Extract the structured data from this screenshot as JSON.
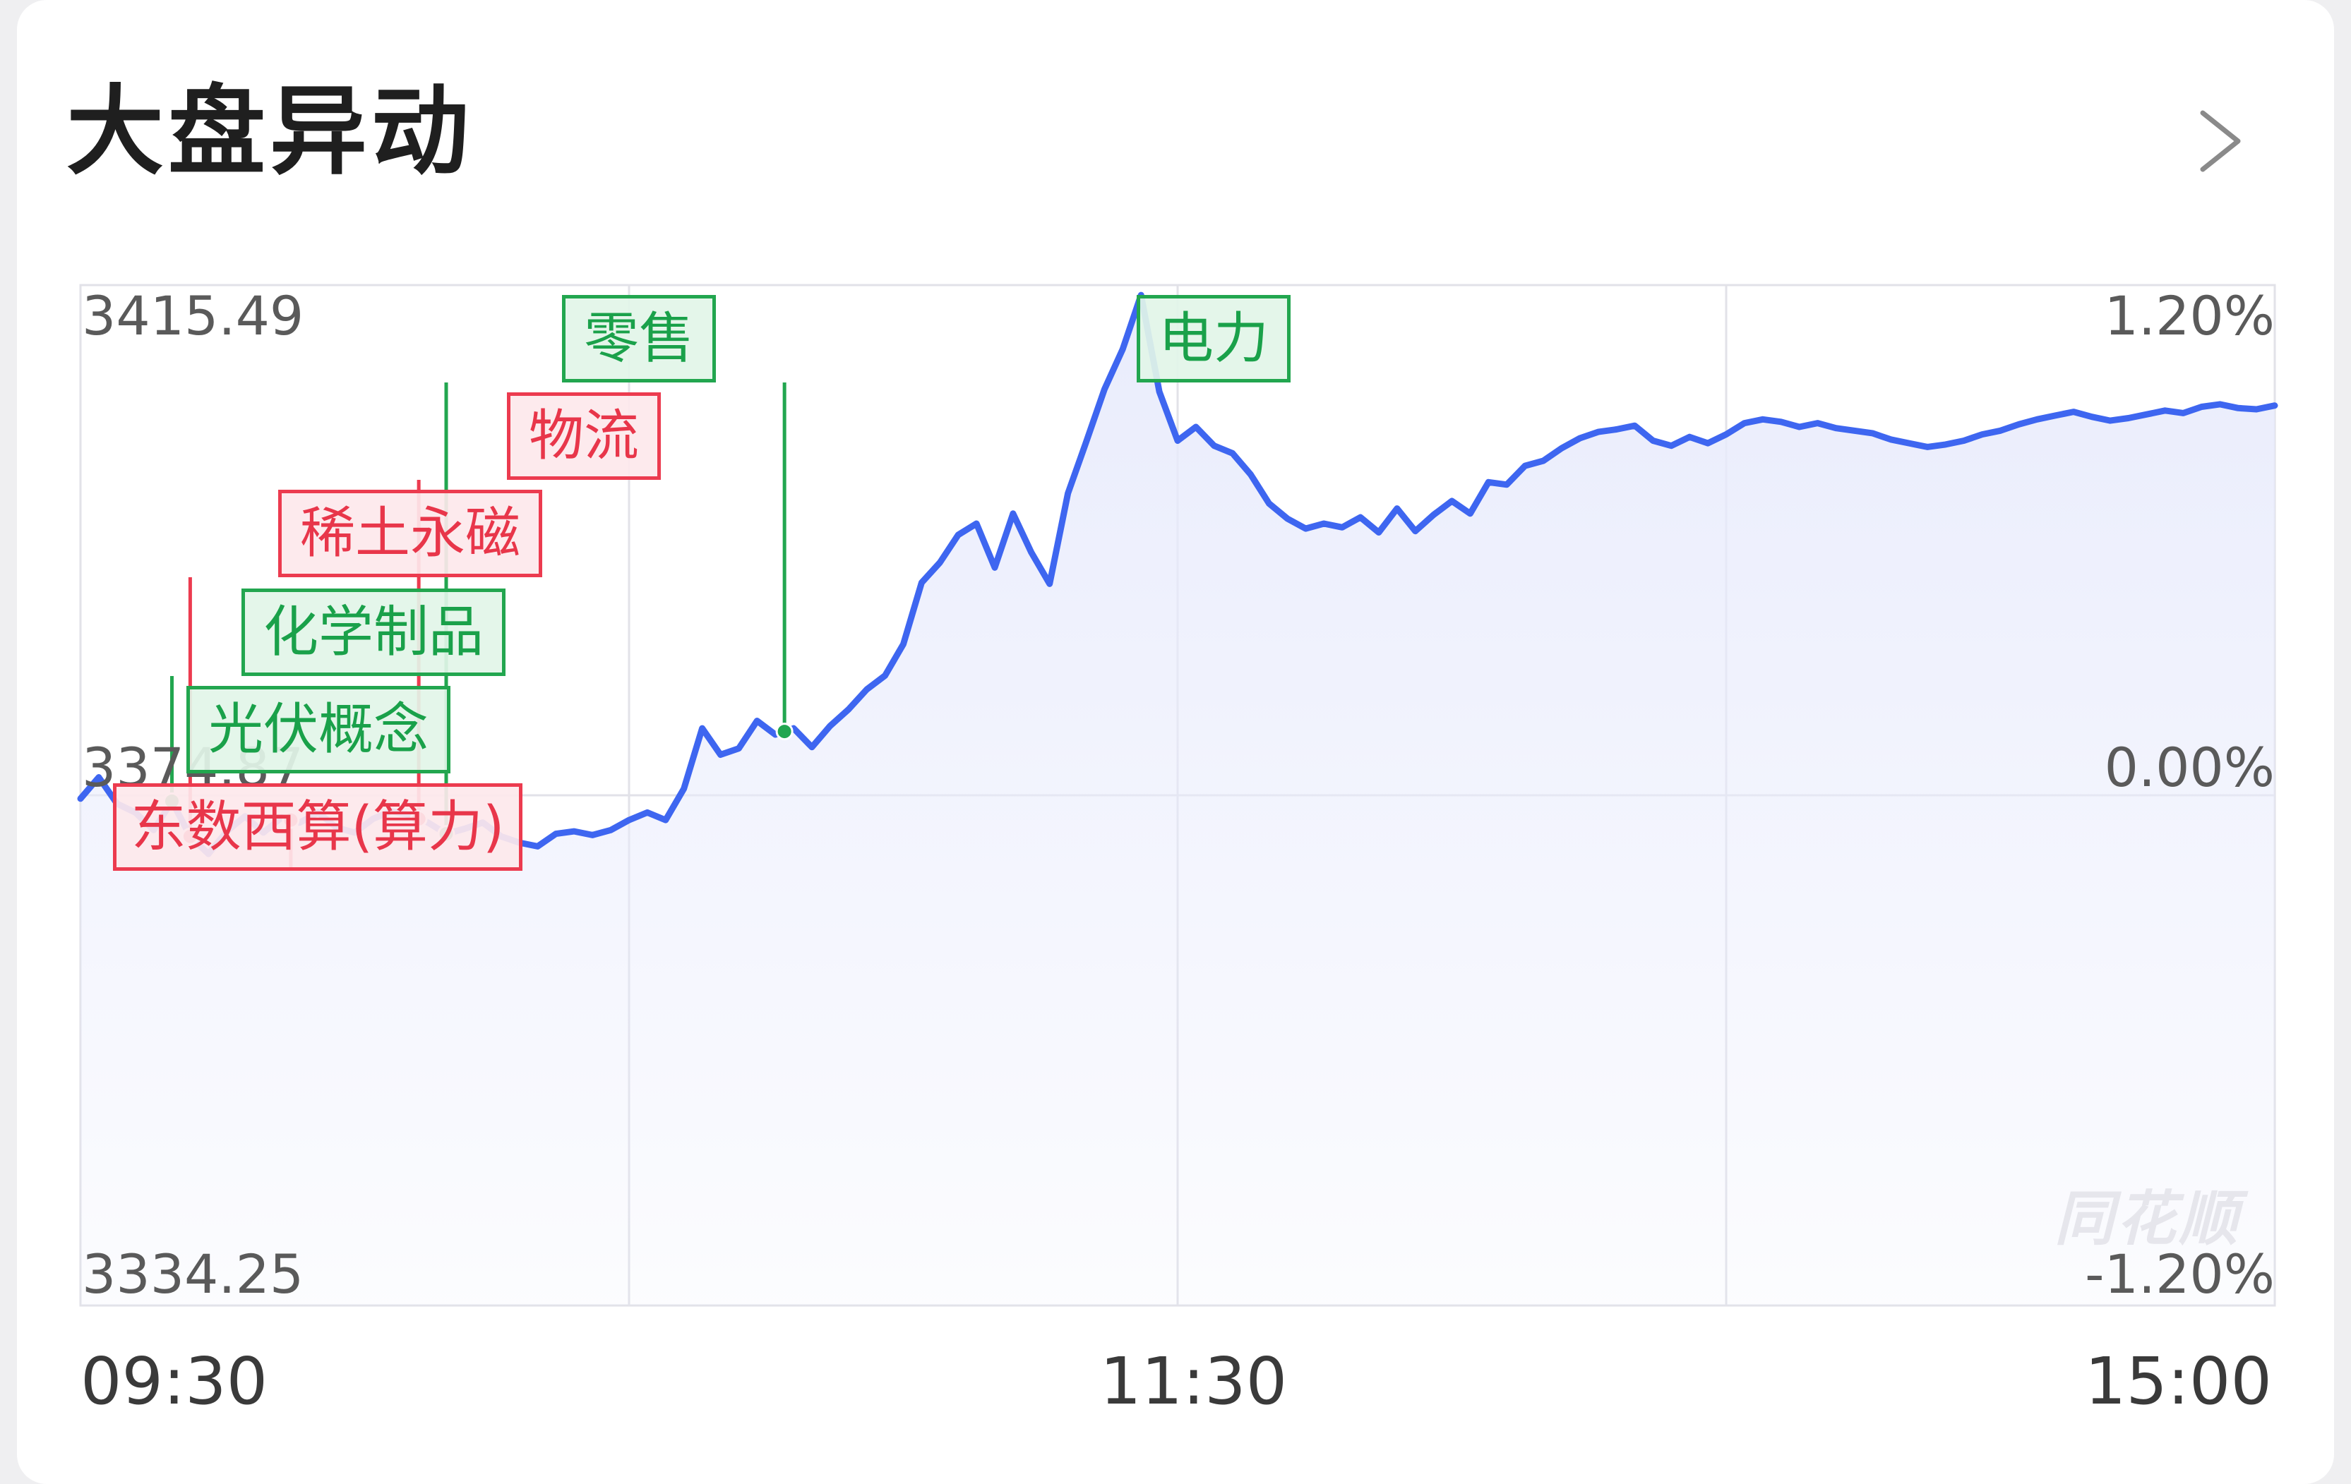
{
  "header": {
    "title": "大盘异动"
  },
  "chart_data": {
    "type": "line",
    "title": "大盘异动",
    "x_ticks": [
      "09:30",
      "11:30",
      "15:00"
    ],
    "y_left_ticks": [
      "3415.49",
      "3374.87",
      "3334.25"
    ],
    "y_right_ticks": [
      "1.20%",
      "0.00%",
      "-1.20%"
    ],
    "ylim": [
      3334.25,
      3415.49
    ],
    "base": 3374.87,
    "x_minutes_range": [
      0,
      240
    ],
    "series": [
      {
        "color": "#3e66f0",
        "x": [
          0,
          2,
          4,
          6,
          8,
          10,
          12,
          14,
          16,
          18,
          20,
          22,
          24,
          26,
          28,
          30,
          32,
          34,
          36,
          38,
          40,
          42,
          44,
          46,
          48,
          50,
          52,
          54,
          56,
          58,
          60,
          62,
          64,
          66,
          68,
          70,
          72,
          74,
          76,
          78,
          80,
          82,
          84,
          86,
          88,
          90,
          92,
          94,
          96,
          98,
          100,
          102,
          104,
          106,
          108,
          110,
          112,
          114,
          116,
          118,
          120,
          122,
          124,
          126,
          128,
          130,
          132,
          134,
          136,
          138,
          140,
          142,
          144,
          146,
          148,
          150,
          152,
          154,
          156,
          158,
          160,
          162,
          164,
          166,
          168,
          170,
          172,
          174,
          176,
          178,
          180,
          182,
          184,
          186,
          188,
          190,
          192,
          194,
          196,
          198,
          200,
          202,
          204,
          206,
          208,
          210,
          212,
          214,
          216,
          218,
          220,
          222,
          224,
          226,
          228,
          230,
          232,
          234,
          236,
          238,
          240
        ],
        "values": [
          3374.6,
          3376.3,
          3374.2,
          3373.5,
          3372.1,
          3374.4,
          3371.6,
          3370.2,
          3372.0,
          3373.2,
          3371.9,
          3373.1,
          3372.7,
          3373.5,
          3372.3,
          3371.9,
          3373.0,
          3373.6,
          3373.3,
          3372.7,
          3371.8,
          3372.2,
          3372.7,
          3371.6,
          3371.1,
          3370.8,
          3371.8,
          3372.0,
          3371.7,
          3372.1,
          3372.9,
          3373.5,
          3372.9,
          3375.4,
          3380.2,
          3378.1,
          3378.6,
          3380.8,
          3379.7,
          3380.2,
          3378.7,
          3380.4,
          3381.7,
          3383.3,
          3384.4,
          3386.9,
          3391.8,
          3393.4,
          3395.6,
          3396.5,
          3393.0,
          3397.3,
          3394.2,
          3391.7,
          3398.9,
          3403.0,
          3407.2,
          3410.4,
          3414.7,
          3407.0,
          3403.1,
          3404.2,
          3402.7,
          3402.1,
          3400.4,
          3398.1,
          3396.9,
          3396.1,
          3396.5,
          3396.2,
          3397.0,
          3395.8,
          3397.7,
          3395.9,
          3397.2,
          3398.3,
          3397.3,
          3399.8,
          3399.6,
          3401.1,
          3401.5,
          3402.5,
          3403.3,
          3403.8,
          3404.0,
          3404.3,
          3403.1,
          3402.7,
          3403.4,
          3402.9,
          3403.6,
          3404.5,
          3404.8,
          3404.6,
          3404.2,
          3404.5,
          3404.1,
          3403.9,
          3403.7,
          3403.2,
          3402.9,
          3402.6,
          3402.8,
          3403.1,
          3403.6,
          3403.9,
          3404.4,
          3404.8,
          3405.1,
          3405.4,
          3405.0,
          3404.7,
          3404.9,
          3405.2,
          3405.5,
          3405.3,
          3405.8,
          3406.0,
          3405.7,
          3405.6,
          3405.9
        ]
      }
    ],
    "annotations": [
      {
        "label": "零售",
        "color": "green",
        "x": 40
      },
      {
        "label": "物流",
        "color": "red",
        "x": 37
      },
      {
        "label": "稀土永磁",
        "color": "red",
        "x": 12
      },
      {
        "label": "化学制品",
        "color": "green",
        "x": 10
      },
      {
        "label": "光伏概念",
        "color": "green",
        "x": 10
      },
      {
        "label": "东数西算(算力)",
        "color": "red",
        "x": 23
      },
      {
        "label": "电力",
        "color": "green",
        "x": 77
      }
    ],
    "watermark": "同花顺",
    "grid": true
  },
  "colors": {
    "line": "#3e66f0",
    "fill": "#e8ebfc",
    "grid": "#e2e2e8",
    "red": "#ec3b4f",
    "green": "#22a64f"
  }
}
